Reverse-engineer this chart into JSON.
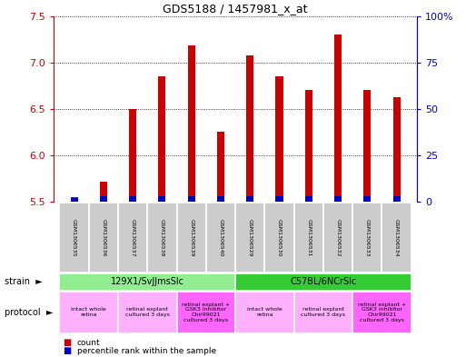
{
  "title": "GDS5188 / 1457981_x_at",
  "samples": [
    "GSM1306535",
    "GSM1306536",
    "GSM1306537",
    "GSM1306538",
    "GSM1306539",
    "GSM1306540",
    "GSM1306529",
    "GSM1306530",
    "GSM1306531",
    "GSM1306532",
    "GSM1306533",
    "GSM1306534"
  ],
  "count_values": [
    5.55,
    5.72,
    6.5,
    6.85,
    7.18,
    6.25,
    7.08,
    6.85,
    6.7,
    7.3,
    6.7,
    6.63
  ],
  "percentile_values": [
    2,
    3,
    3,
    3,
    3,
    3,
    3,
    3,
    3,
    3,
    3,
    3
  ],
  "ylim_left": [
    5.5,
    7.5
  ],
  "ylim_right": [
    0,
    100
  ],
  "right_ticks": [
    0,
    25,
    50,
    75,
    100
  ],
  "right_tick_labels": [
    "0",
    "25",
    "50",
    "75",
    "100%"
  ],
  "left_ticks": [
    5.5,
    6.0,
    6.5,
    7.0,
    7.5
  ],
  "strain_groups": [
    {
      "label": "129X1/SvJJmsSlc",
      "start": 0,
      "end": 6,
      "color": "#90EE90"
    },
    {
      "label": "C57BL/6NCrSlc",
      "start": 6,
      "end": 12,
      "color": "#33CC33"
    }
  ],
  "protocol_groups": [
    {
      "label": "intact whole\nretina",
      "start": 0,
      "end": 2,
      "color": "#FFB0FF"
    },
    {
      "label": "retinal explant\ncultured 3 days",
      "start": 2,
      "end": 4,
      "color": "#FFB0FF"
    },
    {
      "label": "retinal explant +\nGSK3 inhibitor\nChir99021\ncultured 3 days",
      "start": 4,
      "end": 6,
      "color": "#FF66FF"
    },
    {
      "label": "intact whole\nretina",
      "start": 6,
      "end": 8,
      "color": "#FFB0FF"
    },
    {
      "label": "retinal explant\ncultured 3 days",
      "start": 8,
      "end": 10,
      "color": "#FFB0FF"
    },
    {
      "label": "retinal explant +\nGSK3 inhibitor\nChir99021\ncultured 3 days",
      "start": 10,
      "end": 12,
      "color": "#FF66FF"
    }
  ],
  "bar_color_red": "#CC0000",
  "bar_color_blue": "#0000CC",
  "bar_width": 0.25,
  "bg_color": "#FFFFFF",
  "sample_box_color": "#CCCCCC",
  "left_axis_color": "#CC0000",
  "right_axis_color": "#0000CC"
}
